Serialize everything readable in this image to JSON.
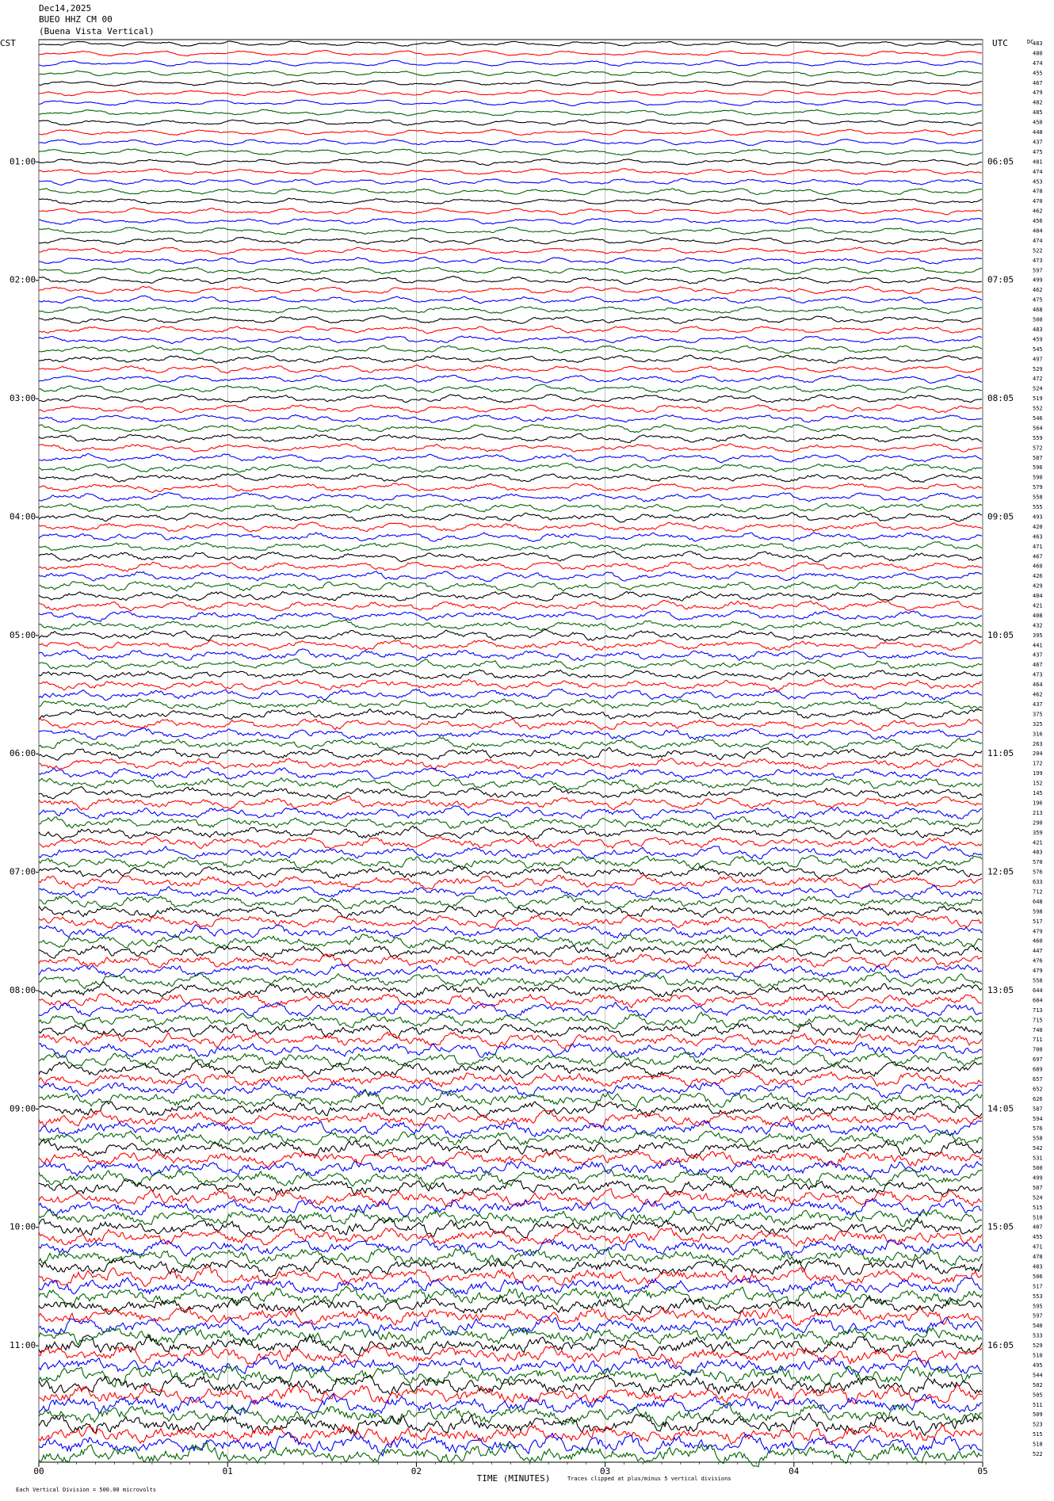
{
  "header": {
    "date": "Dec14,2025",
    "station": "BUEO HHZ CM 00",
    "location": "(Buena Vista Vertical)"
  },
  "left_axis": {
    "title": "CST",
    "labels": [
      "01:00",
      "02:00",
      "03:00",
      "04:00",
      "05:00",
      "06:00",
      "07:00",
      "08:00",
      "09:00",
      "10:00",
      "11:00"
    ]
  },
  "right_axis": {
    "title": "UTC",
    "labels": [
      "06:05",
      "07:05",
      "08:05",
      "09:05",
      "10:05",
      "11:05",
      "12:05",
      "13:05",
      "14:05",
      "15:05",
      "16:05"
    ]
  },
  "counts_title": "DC",
  "trace_counts": [
    483,
    480,
    474,
    455,
    467,
    479,
    482,
    485,
    450,
    448,
    437,
    475,
    481,
    474,
    453,
    478,
    470,
    462,
    456,
    484,
    474,
    522,
    473,
    597,
    499,
    462,
    475,
    468,
    500,
    483,
    459,
    545,
    497,
    529,
    472,
    524,
    519,
    552,
    546,
    564,
    559,
    572,
    587,
    596,
    590,
    579,
    558,
    555,
    493,
    420,
    463,
    471,
    467,
    460,
    426,
    429,
    404,
    421,
    408,
    432,
    395,
    441,
    437,
    467,
    473,
    464,
    462,
    437,
    375,
    325,
    316,
    263,
    204,
    172,
    199,
    152,
    145,
    196,
    213,
    290,
    359,
    421,
    483,
    570,
    576,
    633,
    712,
    648,
    598,
    517,
    479,
    460,
    447,
    476,
    479,
    558,
    644,
    684,
    713,
    715,
    740,
    711,
    700,
    697,
    689,
    657,
    652,
    626,
    587,
    594,
    576,
    558,
    542,
    531,
    500,
    499,
    507,
    524,
    515,
    510,
    487,
    455,
    471,
    478,
    483,
    506,
    517,
    553,
    595,
    597,
    540,
    533,
    529,
    510,
    495,
    544,
    502,
    505,
    511,
    509,
    523,
    515,
    518,
    522
  ],
  "x_axis": {
    "title": "TIME (MINUTES)",
    "labels": [
      "00",
      "01",
      "02",
      "03",
      "04",
      "05"
    ]
  },
  "footer": {
    "scale_note": "Each Vertical Division =  500.00 microvolts",
    "clip_note": "Traces clipped at plus/minus 5 vertical divisions"
  }
}
